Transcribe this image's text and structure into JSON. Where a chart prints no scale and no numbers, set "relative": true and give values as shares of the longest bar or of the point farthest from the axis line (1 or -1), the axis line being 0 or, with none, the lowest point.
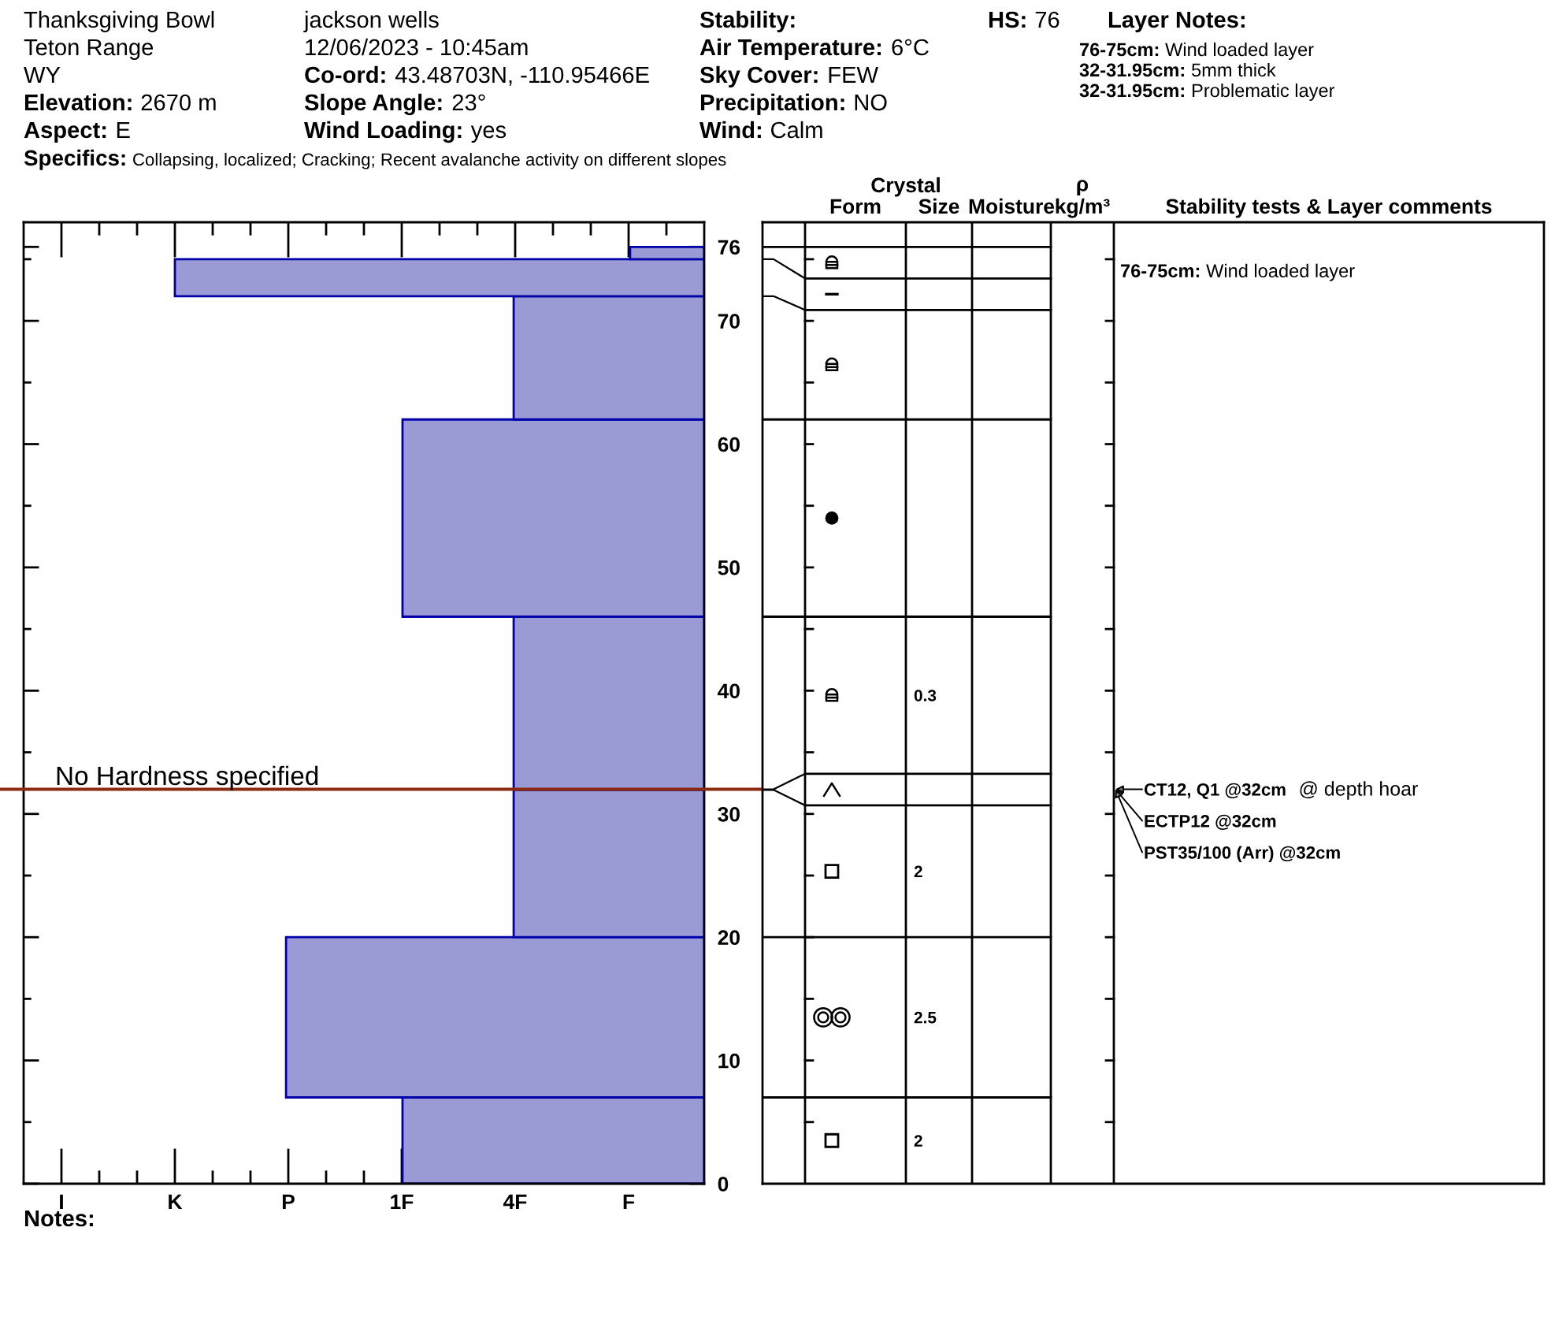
{
  "chart_data": [
    {
      "type": "bar",
      "orientation": "horizontal",
      "relative": true,
      "x": [
        3.5,
        13.5,
        25.975,
        31.975,
        39,
        54,
        67,
        73.5,
        75.5
      ],
      "values": [
        0.57,
        0.79,
        0.36,
        null,
        0.36,
        0.57,
        0.36,
        1,
        0.14
      ],
      "color": "#9a9ad5",
      "ylim": [
        0,
        78
      ],
      "yticks": [
        0,
        {
          "value": 5,
          "label": null
        },
        10,
        {
          "value": 15,
          "label": null
        },
        20,
        {
          "value": 25,
          "label": null
        },
        30,
        {
          "value": 35,
          "label": null
        },
        40,
        {
          "value": 45,
          "label": null
        },
        50,
        {
          "value": 55,
          "label": null
        },
        60,
        {
          "value": 65,
          "label": null
        },
        70,
        {
          "value": 75,
          "label": null
        },
        76
      ],
      "ref_lines": [
        {
          "axis": "y",
          "value": 32,
          "label": "No Hardness specified",
          "color": "#8b2a10"
        }
      ],
      "annotations": [
        "Thanksgiving Bowl",
        "Teton Range",
        "WY",
        "Elevation: 2670 m",
        "Aspect: E",
        "jackson wells",
        "12/06/2023 - 10:45am",
        "Co-ord: 43.48703N, -110.95466E",
        "Slope Angle: 23°",
        "Wind Loading: yes",
        "Stability:",
        "Air Temperature: 6°C",
        "Sky Cover: FEW",
        "Precipitation: NO",
        "Wind: Calm",
        "HS:76",
        "Layer Notes:",
        "76-75cm: Wind loaded layer",
        "32-31.95cm: 5mm thick",
        "32-31.95cm: Problematic layer",
        "Specifics: Collapsing, localized; Cracking; Recent avalanche activity on different slopes",
        "I",
        "K",
        "P",
        "1F",
        "4F",
        "F",
        "Notes:"
      ]
    },
    {
      "type": "other",
      "categories": [
        null,
        "Form",
        "Size",
        "Moisture",
        "ρ\nkg/m³",
        "Stability tests & Layer comments"
      ],
      "annotations": [
        "Crystal",
        "76-75cm: Wind loaded layer",
        "0.3",
        "CT12, Q1 @32cm  @ depth hoar",
        "ECTP12 @32cm",
        "PST35/100 (Arr) @32cm",
        "2",
        "2.5",
        "2"
      ]
    }
  ]
}
